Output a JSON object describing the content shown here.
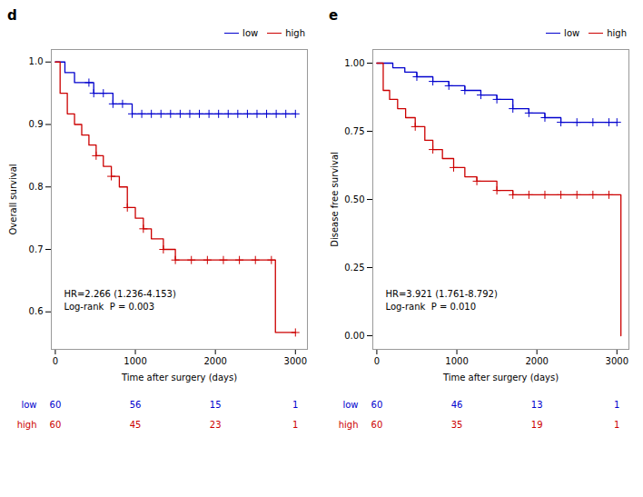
{
  "chart_data": [
    {
      "type": "step",
      "title": "d",
      "xlabel": "Time after surgery (days)",
      "ylabel": "Overall survival",
      "xlim": [
        -50,
        3150
      ],
      "ylim": [
        0.54,
        1.02
      ],
      "xticks": [
        0,
        1000,
        2000,
        3000
      ],
      "yticks": [
        0.6,
        0.7,
        0.8,
        0.9,
        {
          "value": 1.0,
          "label": "1.0"
        }
      ],
      "annotations": [
        "HR=2.266 (1.236-4.153)",
        "Log-rank  P = 0.003"
      ],
      "legend": "upper right",
      "series": [
        {
          "name": "low",
          "color": "#0000CD",
          "x": [
            0,
            60,
            120,
            180,
            240,
            420,
            480,
            600,
            720,
            840,
            960,
            1080,
            1440,
            1560,
            1680,
            1800,
            1920,
            2040,
            2160,
            2280,
            2520,
            2640,
            2880,
            3000
          ],
          "values": [
            1.0,
            1.0,
            0.983,
            0.983,
            0.967,
            0.967,
            0.95,
            0.95,
            0.933,
            0.933,
            0.917,
            0.917,
            0.917,
            0.917,
            0.917,
            0.917,
            0.917,
            0.917,
            0.917,
            0.917,
            0.917,
            0.917,
            0.917,
            0.917
          ],
          "censor_x": [
            420,
            480,
            600,
            720,
            840,
            960,
            1080,
            1200,
            1320,
            1440,
            1560,
            1680,
            1800,
            1920,
            2040,
            2160,
            2280,
            2400,
            2520,
            2640,
            2760,
            2880,
            3000
          ],
          "censor_values": [
            0.967,
            0.95,
            0.95,
            0.933,
            0.933,
            0.917,
            0.917,
            0.917,
            0.917,
            0.917,
            0.917,
            0.917,
            0.917,
            0.917,
            0.917,
            0.917,
            0.917,
            0.917,
            0.917,
            0.917,
            0.917,
            0.917,
            0.917
          ]
        },
        {
          "name": "high",
          "color": "#CC0000",
          "x": [
            0,
            60,
            150,
            240,
            330,
            420,
            510,
            600,
            700,
            800,
            900,
            1000,
            1100,
            1200,
            1350,
            1500,
            1700,
            1900,
            2100,
            2700,
            2750,
            2800,
            3000
          ],
          "values": [
            1.0,
            0.95,
            0.917,
            0.9,
            0.883,
            0.867,
            0.85,
            0.833,
            0.817,
            0.8,
            0.767,
            0.75,
            0.733,
            0.717,
            0.7,
            0.683,
            0.683,
            0.683,
            0.683,
            0.683,
            0.567,
            0.567,
            0.567
          ],
          "censor_x": [
            510,
            700,
            900,
            1100,
            1350,
            1500,
            1700,
            1900,
            2100,
            2300,
            2500,
            2700,
            3000
          ],
          "censor_values": [
            0.85,
            0.817,
            0.767,
            0.733,
            0.7,
            0.683,
            0.683,
            0.683,
            0.683,
            0.683,
            0.683,
            0.683,
            0.567
          ]
        }
      ],
      "risk_table": {
        "x": [
          0,
          1000,
          2000,
          3000
        ],
        "rows": [
          {
            "name": "low",
            "color": "#0000CD",
            "values": [
              60,
              56,
              15,
              1
            ]
          },
          {
            "name": "high",
            "color": "#CC0000",
            "values": [
              60,
              45,
              23,
              1
            ]
          }
        ]
      }
    },
    {
      "type": "step",
      "title": "e",
      "xlabel": "Time after surgery (days)",
      "ylabel": "Disease free survival",
      "xlim": [
        -50,
        3150
      ],
      "ylim": [
        -0.05,
        1.05
      ],
      "xticks": [
        0,
        1000,
        2000,
        3000
      ],
      "yticks": [
        {
          "value": 0.0,
          "label": "0.00"
        },
        0.25,
        {
          "value": 0.5,
          "label": "0.50"
        },
        0.75,
        {
          "value": 1.0,
          "label": "1.00"
        }
      ],
      "annotations": [
        "HR=3.921 (1.761-8.792)",
        "Log-rank  P = 0.010"
      ],
      "legend": "upper right",
      "series": [
        {
          "name": "low",
          "color": "#0000CD",
          "x": [
            0,
            100,
            200,
            350,
            500,
            700,
            900,
            1100,
            1300,
            1500,
            1700,
            1900,
            2100,
            2300,
            2500,
            2700,
            2900,
            3000
          ],
          "values": [
            1.0,
            1.0,
            0.983,
            0.967,
            0.95,
            0.933,
            0.917,
            0.9,
            0.883,
            0.867,
            0.833,
            0.817,
            0.8,
            0.783,
            0.783,
            0.783,
            0.783,
            0.783
          ],
          "censor_x": [
            500,
            700,
            900,
            1100,
            1300,
            1500,
            1700,
            1900,
            2100,
            2300,
            2500,
            2700,
            2900,
            3000
          ],
          "censor_values": [
            0.95,
            0.933,
            0.917,
            0.9,
            0.883,
            0.867,
            0.833,
            0.817,
            0.8,
            0.783,
            0.783,
            0.783,
            0.783,
            0.783
          ]
        },
        {
          "name": "high",
          "color": "#CC0000",
          "x": [
            0,
            80,
            160,
            260,
            360,
            480,
            600,
            700,
            820,
            960,
            1100,
            1250,
            1500,
            1700,
            1900,
            2100,
            2300,
            2700,
            2900,
            3000,
            3050
          ],
          "values": [
            1.0,
            0.9,
            0.867,
            0.833,
            0.8,
            0.767,
            0.717,
            0.683,
            0.65,
            0.617,
            0.583,
            0.567,
            0.533,
            0.517,
            0.517,
            0.517,
            0.517,
            0.517,
            0.517,
            0.517,
            0.0
          ],
          "censor_x": [
            480,
            700,
            960,
            1250,
            1500,
            1700,
            1900,
            2100,
            2300,
            2500,
            2700,
            2900
          ],
          "censor_values": [
            0.767,
            0.683,
            0.617,
            0.567,
            0.533,
            0.517,
            0.517,
            0.517,
            0.517,
            0.517,
            0.517,
            0.517
          ]
        }
      ],
      "risk_table": {
        "x": [
          0,
          1000,
          2000,
          3000
        ],
        "rows": [
          {
            "name": "low",
            "color": "#0000CD",
            "values": [
              60,
              46,
              13,
              1
            ]
          },
          {
            "name": "high",
            "color": "#CC0000",
            "values": [
              60,
              35,
              19,
              1
            ]
          }
        ]
      }
    }
  ]
}
